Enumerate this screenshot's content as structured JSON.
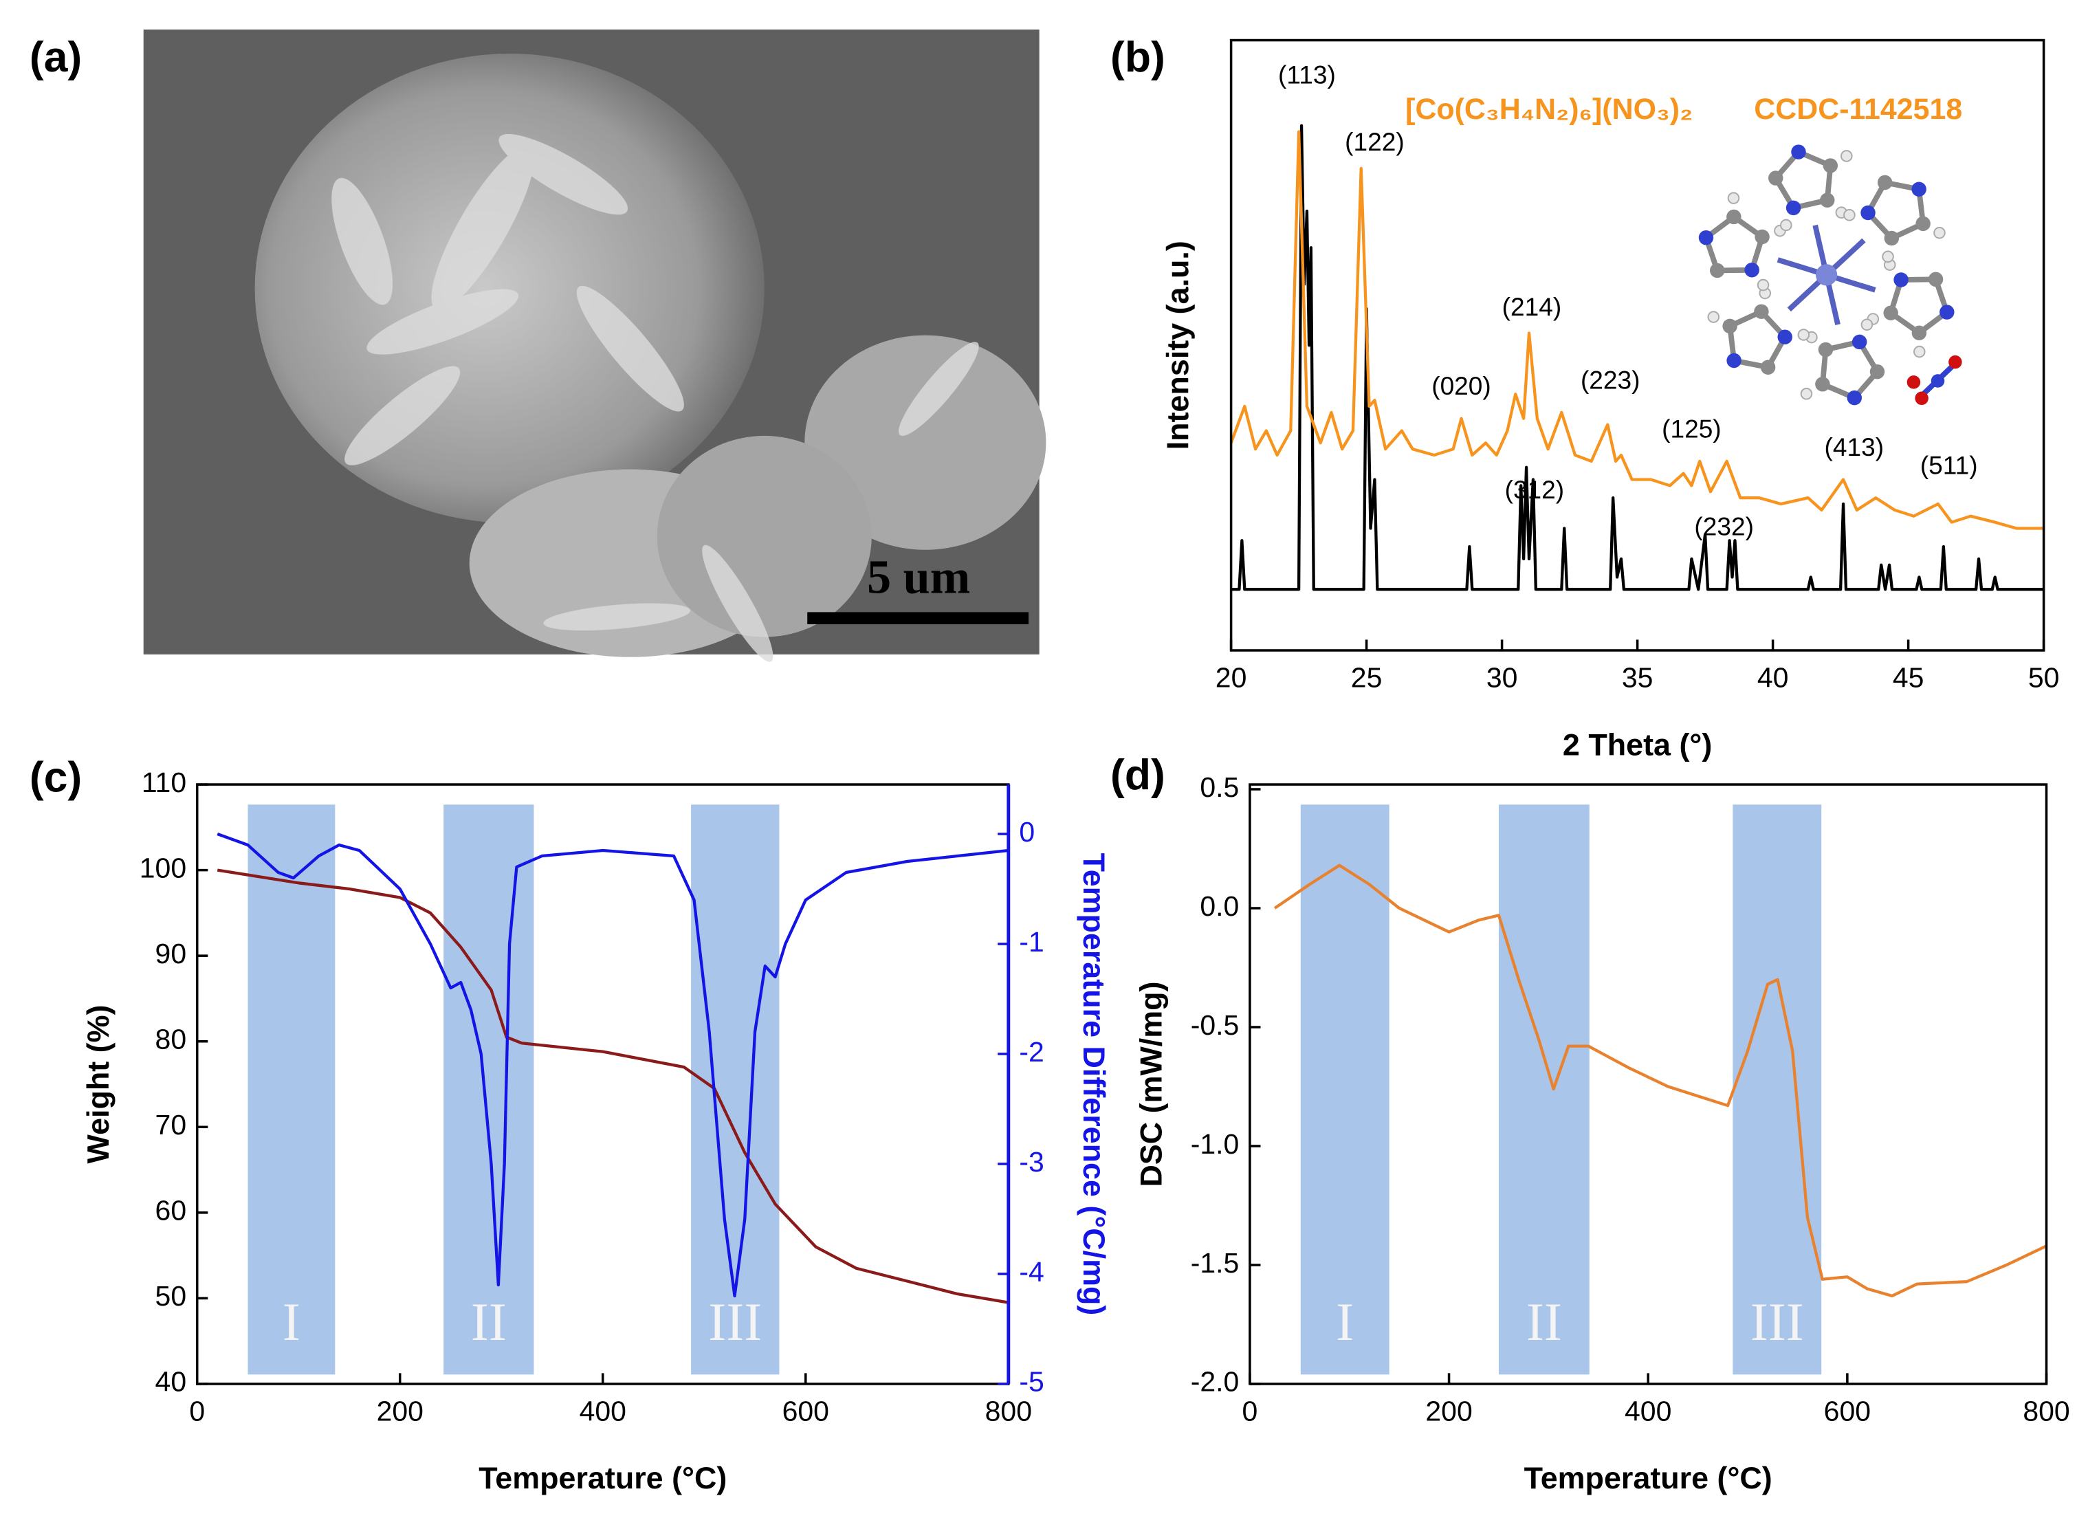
{
  "panel_labels": [
    "(a)",
    "(b)",
    "(c)",
    "(d)"
  ],
  "image_a": {
    "scale_bar": "5 um"
  },
  "chart_data": [
    {
      "type": "line",
      "xlabel": "2 Theta (°)",
      "ylabel": "Intensity (a.u.)",
      "xlim": [
        20,
        50
      ],
      "xticks": [
        20,
        25,
        30,
        35,
        40,
        45,
        50
      ],
      "ylim": [
        0,
        100
      ],
      "legend_text": [
        "[Co(C₃H₄N₂)₆](NO₃)₂",
        "CCDC-1142518"
      ],
      "legend_color": "#f7941d",
      "series": [
        {
          "color": "#000000",
          "x": [
            20,
            20.3,
            20.4,
            20.5,
            22.5,
            22.6,
            22.7,
            22.8,
            22.88,
            22.95,
            23.05,
            24.9,
            25.0,
            25.15,
            25.3,
            25.4,
            28.7,
            28.8,
            28.9,
            30.6,
            30.7,
            30.8,
            30.9,
            31.0,
            31.15,
            31.25,
            32.2,
            32.3,
            32.4,
            34.0,
            34.1,
            34.25,
            34.4,
            34.5,
            36.9,
            37.0,
            37.25,
            37.5,
            37.6,
            38.3,
            38.4,
            38.5,
            38.6,
            38.7,
            41.3,
            41.4,
            41.5,
            42.5,
            42.6,
            42.7,
            43.9,
            44.0,
            44.15,
            44.3,
            44.4,
            45.3,
            45.4,
            45.5,
            46.2,
            46.3,
            46.4,
            47.5,
            47.6,
            47.7,
            48.1,
            48.2,
            48.3,
            50
          ],
          "values": [
            10,
            10,
            18,
            10,
            10,
            86,
            60,
            72,
            50,
            66,
            10,
            10,
            56,
            20,
            28,
            10,
            10,
            17,
            10,
            10,
            27,
            15,
            30,
            15,
            28,
            10,
            10,
            20,
            10,
            10,
            25,
            12,
            15,
            10,
            10,
            15,
            10,
            19,
            10,
            10,
            18,
            12,
            18,
            10,
            10,
            12,
            10,
            10,
            24,
            10,
            10,
            14,
            10,
            14,
            10,
            10,
            12,
            10,
            10,
            17,
            10,
            10,
            15,
            10,
            10,
            12,
            10,
            10
          ]
        },
        {
          "color": "#f7941d",
          "x": [
            20,
            20.5,
            20.9,
            21.3,
            21.7,
            22.2,
            22.5,
            22.8,
            23.3,
            23.7,
            24.1,
            24.5,
            24.8,
            25.1,
            25.3,
            25.7,
            26.3,
            26.7,
            27.5,
            28.2,
            28.5,
            28.9,
            29.4,
            29.8,
            30.2,
            30.5,
            30.8,
            31.0,
            31.3,
            31.7,
            32.2,
            32.7,
            33.3,
            33.9,
            34.2,
            34.4,
            34.8,
            35.5,
            36.2,
            36.7,
            37.0,
            37.3,
            37.7,
            38.3,
            38.8,
            39.5,
            40.3,
            41.3,
            41.8,
            42.6,
            43.1,
            43.8,
            44.5,
            45.2,
            46.1,
            46.6,
            47.3,
            48.2,
            49.0,
            50
          ],
          "values": [
            34,
            40,
            33,
            36,
            32,
            36,
            85,
            40,
            34,
            39,
            33,
            36,
            79,
            40,
            41,
            33,
            36,
            33,
            32,
            33,
            38,
            32,
            34,
            32,
            36,
            42,
            38,
            52,
            38,
            33,
            39,
            32,
            31,
            37,
            31,
            32,
            28,
            28,
            27,
            29,
            27,
            31,
            26,
            31,
            25,
            25,
            24,
            25,
            23,
            28,
            23,
            25,
            23,
            22,
            24,
            21,
            22,
            21,
            20,
            20
          ]
        }
      ],
      "annotations": [
        {
          "text": "(113)",
          "x": 22.8,
          "y": 94
        },
        {
          "text": "(122)",
          "x": 25.3,
          "y": 83
        },
        {
          "text": "(020)",
          "x": 28.5,
          "y": 43
        },
        {
          "text": "(214)",
          "x": 31.1,
          "y": 56
        },
        {
          "text": "(223)",
          "x": 34.0,
          "y": 44
        },
        {
          "text": "(125)",
          "x": 37.0,
          "y": 36
        },
        {
          "text": "(312)",
          "x": 31.2,
          "y": 26
        },
        {
          "text": "(232)",
          "x": 38.2,
          "y": 20
        },
        {
          "text": "(413)",
          "x": 43.0,
          "y": 33
        },
        {
          "text": "(511)",
          "x": 46.5,
          "y": 30
        }
      ]
    },
    {
      "type": "line",
      "xlabel": "Temperature (°C)",
      "ylabel": "Weight (%)",
      "y2label": "Temperature Difference (°C/mg)",
      "xlim": [
        0,
        800
      ],
      "xticks": [
        0,
        200,
        400,
        600,
        800
      ],
      "ylim": [
        40,
        110
      ],
      "yticks": [
        40,
        50,
        60,
        70,
        80,
        90,
        100,
        110
      ],
      "y2lim": [
        -5,
        0.45
      ],
      "y2ticks": [
        0,
        -1,
        -2,
        -3,
        -4,
        -5
      ],
      "regions": [
        {
          "label": "I",
          "x": [
            50,
            136
          ]
        },
        {
          "label": "II",
          "x": [
            243,
            332
          ]
        },
        {
          "label": "III",
          "x": [
            487,
            574
          ]
        }
      ],
      "region_color": "#a9c5ea",
      "series": [
        {
          "color": "#8b1a1a",
          "x": [
            20,
            100,
            150,
            200,
            230,
            260,
            290,
            305,
            320,
            400,
            480,
            510,
            540,
            570,
            610,
            650,
            700,
            750,
            800
          ],
          "values": [
            100,
            98.5,
            97.8,
            96.8,
            95,
            91,
            86,
            80.5,
            79.8,
            78.8,
            77,
            74.5,
            67,
            61,
            56,
            53.5,
            52,
            50.5,
            49.5
          ]
        },
        {
          "color": "#1414e6",
          "axis": "y2",
          "x": [
            20,
            50,
            80,
            95,
            120,
            140,
            160,
            200,
            230,
            250,
            260,
            270,
            280,
            290,
            297,
            303,
            308,
            315,
            340,
            400,
            470,
            490,
            505,
            520,
            530,
            540,
            550,
            560,
            570,
            580,
            600,
            640,
            700,
            750,
            800
          ],
          "values": [
            0,
            -0.1,
            -0.35,
            -0.4,
            -0.2,
            -0.1,
            -0.15,
            -0.5,
            -1,
            -1.4,
            -1.35,
            -1.6,
            -2,
            -3,
            -4.1,
            -3,
            -1,
            -0.3,
            -0.2,
            -0.15,
            -0.2,
            -0.6,
            -1.8,
            -3.5,
            -4.2,
            -3.5,
            -1.8,
            -1.2,
            -1.3,
            -1,
            -0.6,
            -0.35,
            -0.25,
            -0.2,
            -0.15
          ]
        }
      ]
    },
    {
      "type": "line",
      "xlabel": "Temperature (°C)",
      "ylabel": "DSC (mW/mg)",
      "xlim": [
        0,
        800
      ],
      "xticks": [
        0,
        200,
        400,
        600,
        800
      ],
      "ylim": [
        -2.0,
        0.52
      ],
      "yticks": [
        0.5,
        {
          "value": 0,
          "label": "0.0"
        },
        -0.5,
        {
          "value": -1,
          "label": "-1.0"
        },
        -1.5,
        {
          "value": -2,
          "label": "-2.0"
        }
      ],
      "regions": [
        {
          "label": "I",
          "x": [
            51,
            140
          ]
        },
        {
          "label": "II",
          "x": [
            250,
            341
          ]
        },
        {
          "label": "III",
          "x": [
            485,
            574
          ]
        }
      ],
      "region_color": "#a9c5ea",
      "series": [
        {
          "color": "#e8822e",
          "x": [
            25,
            60,
            90,
            120,
            150,
            200,
            230,
            250,
            270,
            290,
            305,
            320,
            340,
            380,
            420,
            480,
            500,
            520,
            530,
            545,
            560,
            575,
            600,
            620,
            645,
            670,
            720,
            760,
            800
          ],
          "values": [
            0,
            0.1,
            0.18,
            0.1,
            0,
            -0.1,
            -0.05,
            -0.03,
            -0.3,
            -0.55,
            -0.76,
            -0.58,
            -0.58,
            -0.67,
            -0.75,
            -0.83,
            -0.6,
            -0.32,
            -0.3,
            -0.6,
            -1.3,
            -1.56,
            -1.55,
            -1.6,
            -1.63,
            -1.58,
            -1.57,
            -1.5,
            -1.42
          ]
        }
      ]
    }
  ]
}
